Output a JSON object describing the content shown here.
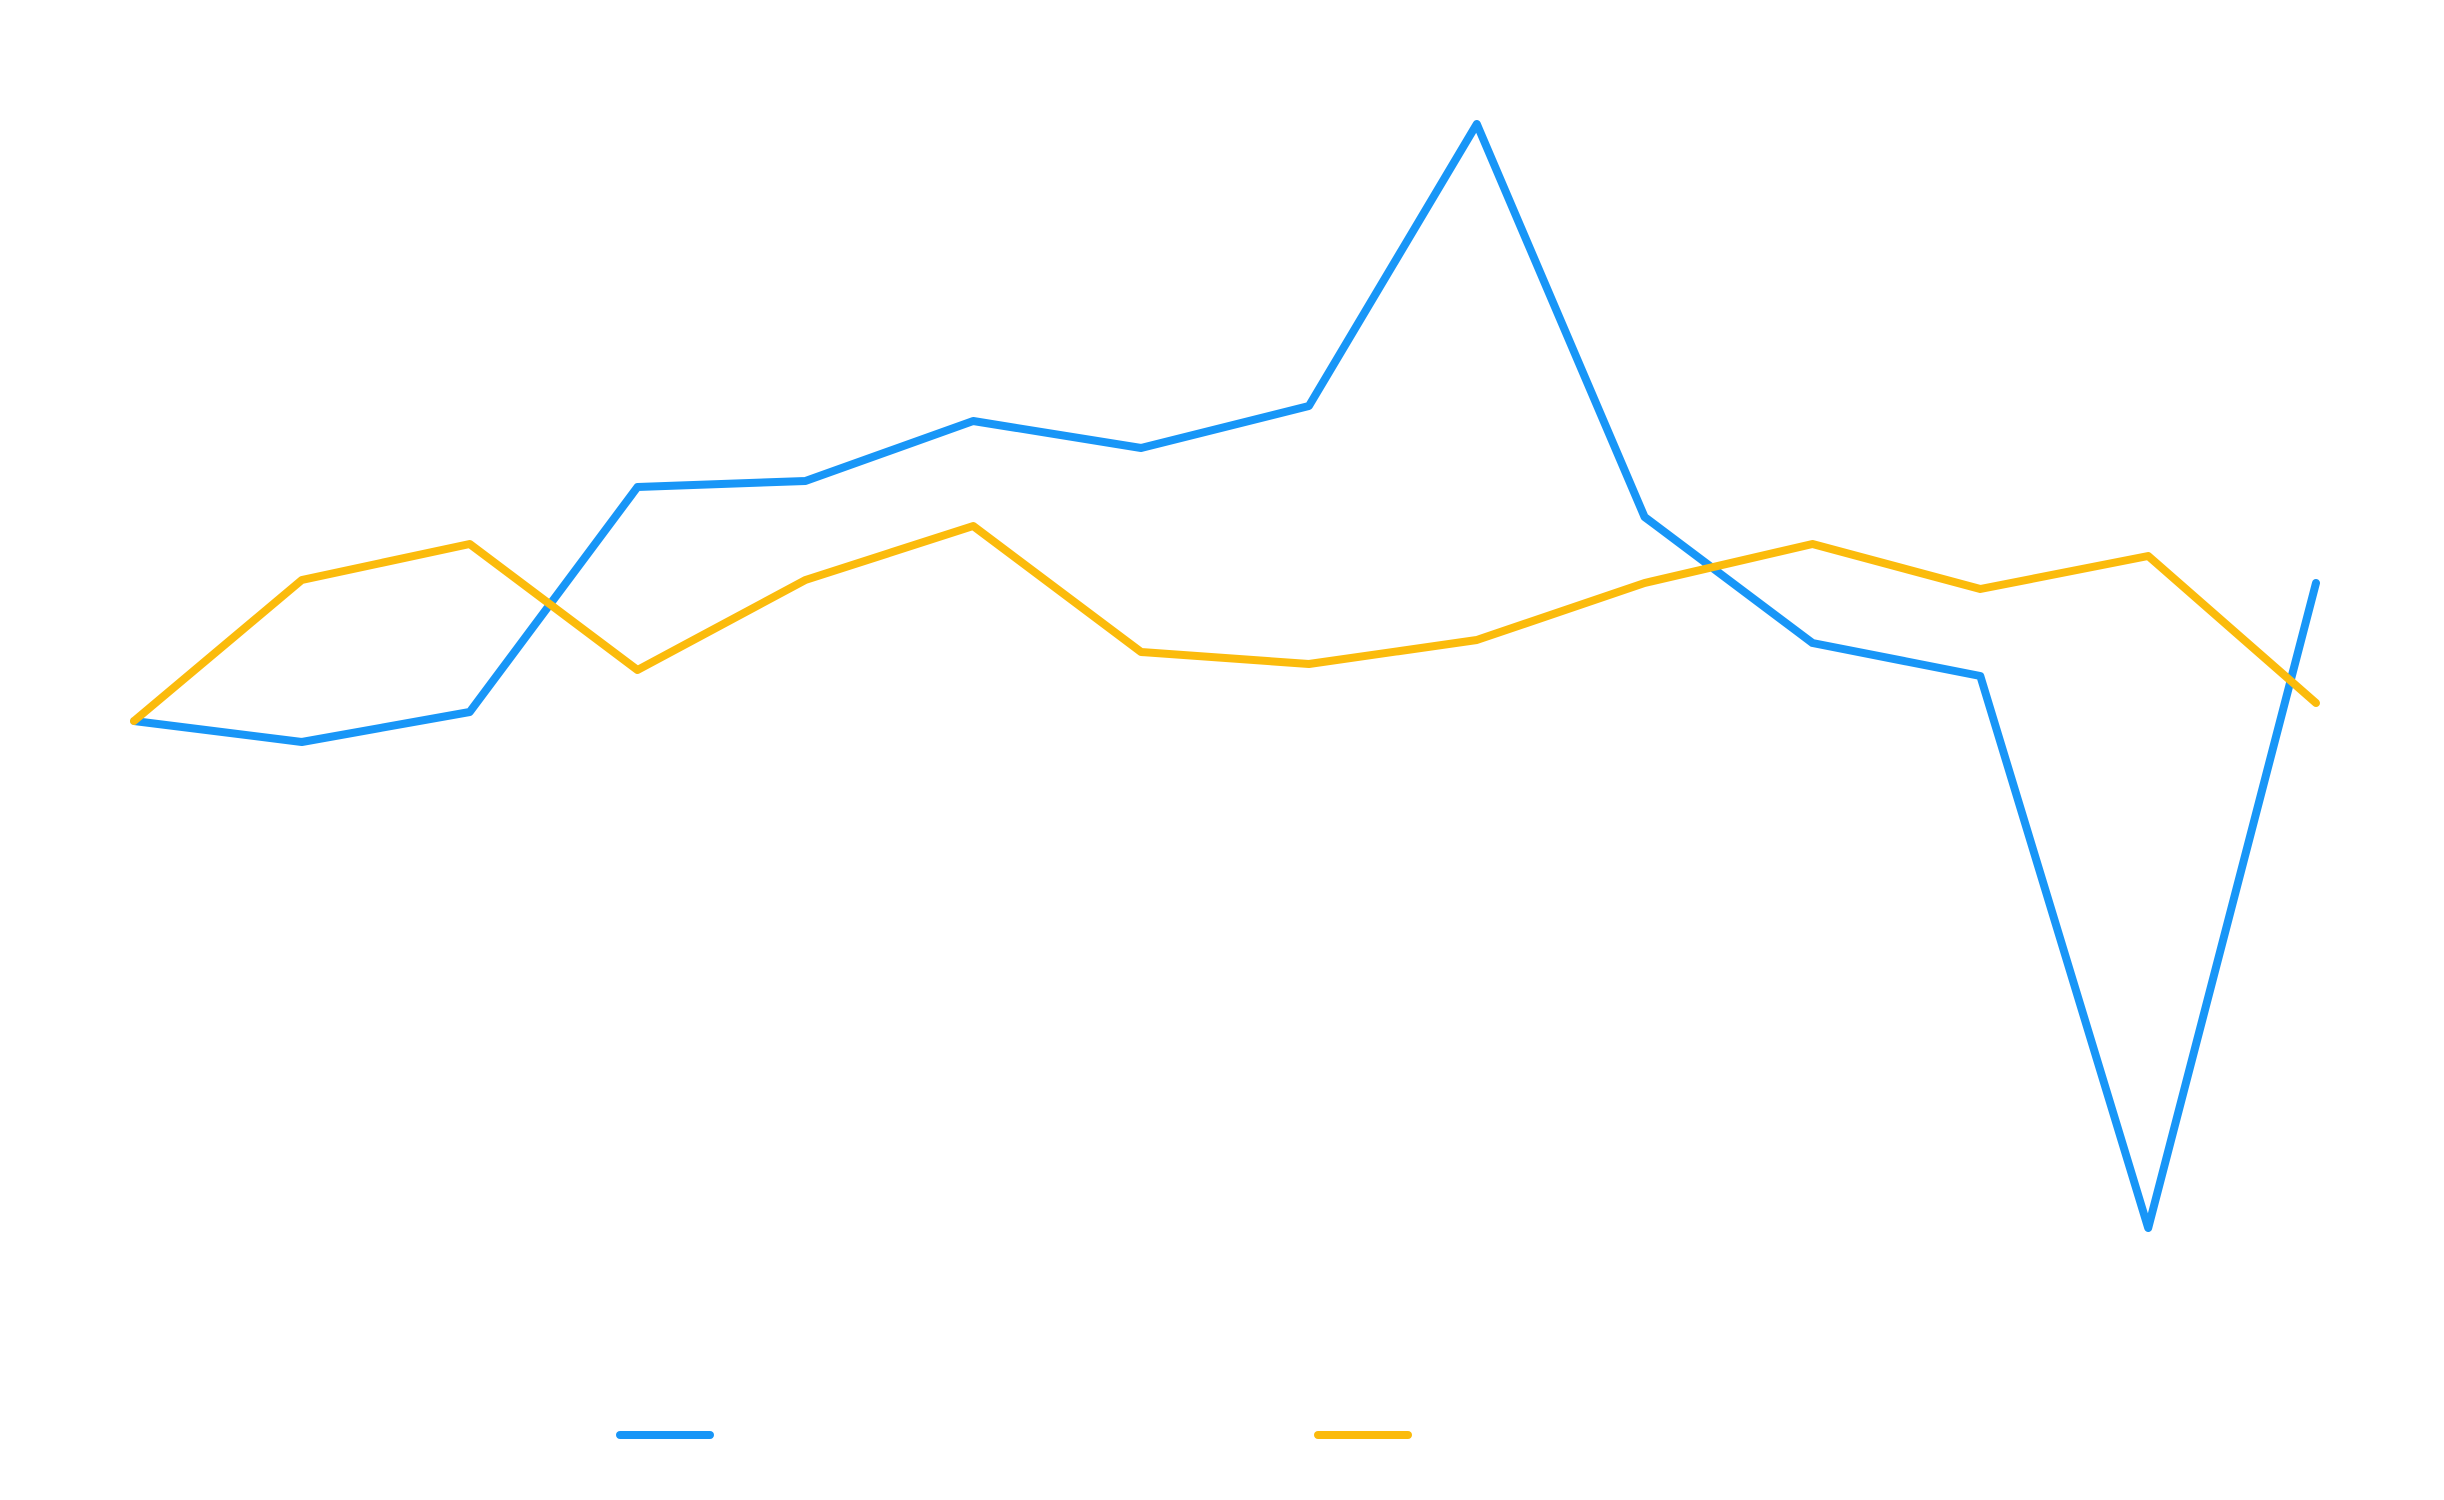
{
  "chart_data": {
    "type": "line",
    "title": "",
    "xlabel": "",
    "ylabel": "",
    "grid": false,
    "legend_position": "bottom",
    "x": [
      1,
      2,
      3,
      4,
      5,
      6,
      7,
      8,
      9,
      10,
      11,
      12,
      13,
      14
    ],
    "ylim": [
      -2,
      2.4
    ],
    "series": [
      {
        "color": "#1896f7",
        "values": [
          0.23,
          0.16,
          0.26,
          1.01,
          1.03,
          1.23,
          1.14,
          1.28,
          2.22,
          0.91,
          0.49,
          0.38,
          -1.46,
          0.69
        ]
      },
      {
        "color": "#fbbb0c",
        "values": [
          0.23,
          0.7,
          0.82,
          0.4,
          0.7,
          0.88,
          0.46,
          0.42,
          0.5,
          0.69,
          0.82,
          0.67,
          0.78,
          0.29
        ]
      }
    ]
  }
}
